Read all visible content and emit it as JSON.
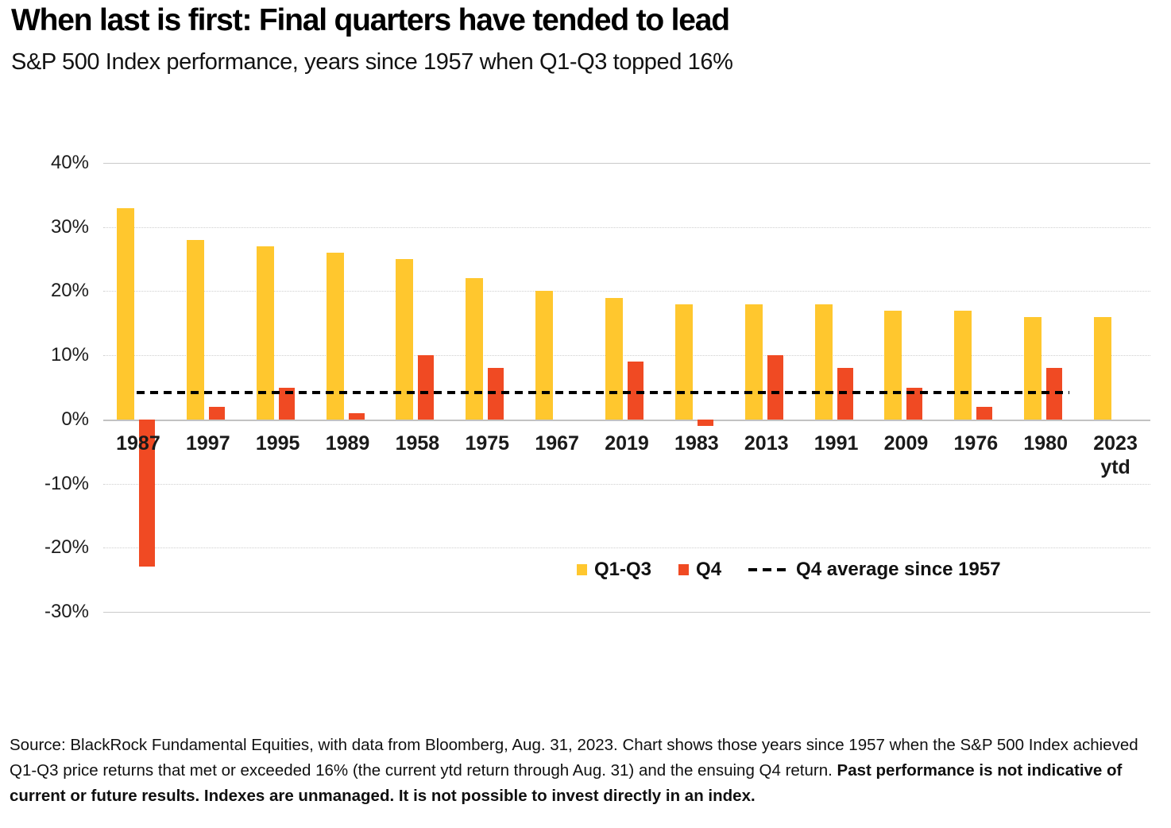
{
  "header": {
    "title": "When last is first: Final quarters have tended to lead",
    "subtitle": "S&P 500 Index performance, years since 1957 when Q1-Q3 topped 16%"
  },
  "chart_data": {
    "type": "bar",
    "categories": [
      "1987",
      "1997",
      "1995",
      "1989",
      "1958",
      "1975",
      "1967",
      "2019",
      "1983",
      "2013",
      "1991",
      "2009",
      "1976",
      "1980",
      "2023\nytd"
    ],
    "series": [
      {
        "name": "Q1-Q3",
        "color": "#FFC72E",
        "values": [
          33,
          28,
          27,
          26,
          25,
          22,
          20,
          19,
          18,
          18,
          18,
          17,
          17,
          16,
          16
        ]
      },
      {
        "name": "Q4",
        "color": "#F04A23",
        "values": [
          -23,
          2,
          5,
          1,
          10,
          8,
          0,
          9,
          -1,
          10,
          8,
          5,
          2,
          8,
          null
        ]
      }
    ],
    "reference_line": {
      "label": "Q4 average since 1957",
      "value": 4.2,
      "style": "dashed",
      "color": "#000000"
    },
    "ylim": [
      -30,
      40
    ],
    "ytick_values": [
      40,
      30,
      20,
      10,
      0,
      -10,
      -20,
      -30
    ],
    "ytick_labels": [
      "40%",
      "30%",
      "20%",
      "10%",
      "0%",
      "-10%",
      "-20%",
      "-30%"
    ],
    "grid": true,
    "legend_position": "inside-bottom-right"
  },
  "footer": {
    "source_text": "Source: BlackRock Fundamental Equities, with data from Bloomberg, Aug. 31, 2023. Chart shows those years since 1957 when the S&P 500 Index achieved Q1-Q3 price returns that met or exceeded 16% (the current ytd return through Aug. 31) and the ensuing Q4 return. ",
    "source_bold": "Past performance is not indicative of current or future results. Indexes are unmanaged. It is not possible to invest directly in an index."
  }
}
